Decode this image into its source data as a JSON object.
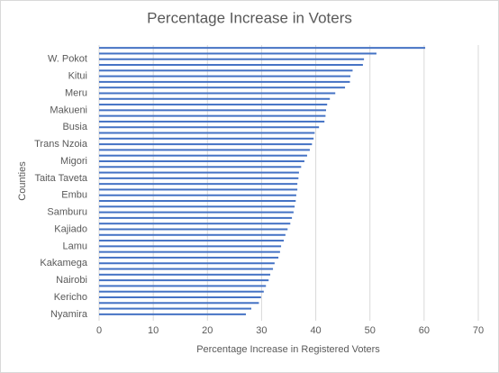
{
  "chart_data": {
    "type": "bar",
    "orientation": "horizontal",
    "title": "Percentage Increase in Voters",
    "x_label": "Percentage Increase in Registered Voters",
    "y_label": "Counties",
    "categories": [
      null,
      null,
      "W. Pokot",
      null,
      null,
      "Kitui",
      null,
      null,
      "Meru",
      null,
      null,
      "Makueni",
      null,
      null,
      "Busia",
      null,
      null,
      "Trans Nzoia",
      null,
      null,
      "Migori",
      null,
      null,
      "Taita Taveta",
      null,
      null,
      "Embu",
      null,
      null,
      "Samburu",
      null,
      null,
      "Kajiado",
      null,
      null,
      "Lamu",
      null,
      null,
      "Kakamega",
      null,
      null,
      "Nairobi",
      null,
      null,
      "Kericho",
      null,
      null,
      "Nyamira"
    ],
    "values": [
      60.2,
      51.2,
      48.9,
      48.7,
      46.8,
      46.4,
      46.3,
      45.4,
      43.6,
      42.6,
      42.1,
      41.9,
      41.8,
      41.6,
      40.6,
      39.8,
      39.6,
      39.3,
      38.9,
      38.4,
      37.9,
      37.3,
      36.9,
      36.8,
      36.6,
      36.6,
      36.4,
      36.3,
      36.1,
      35.9,
      35.6,
      35.3,
      34.8,
      34.4,
      34.1,
      33.6,
      33.4,
      33.1,
      32.4,
      32.1,
      31.6,
      31.3,
      30.8,
      30.4,
      29.9,
      29.5,
      28.1,
      27.1
    ],
    "color": "#4472c4",
    "xlim": [
      0,
      70
    ],
    "xticks": [
      0,
      10,
      20,
      30,
      40,
      50,
      60,
      70
    ],
    "grid": true
  }
}
